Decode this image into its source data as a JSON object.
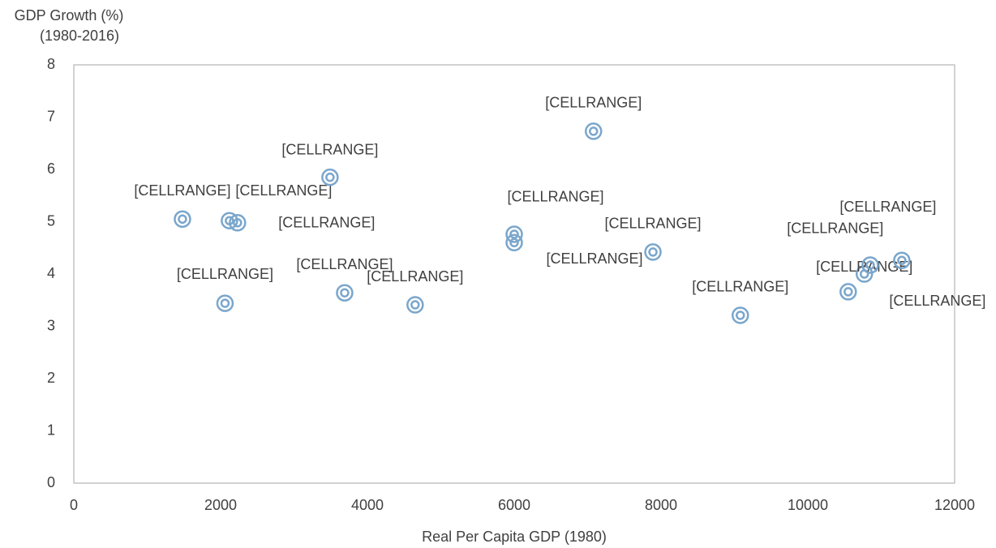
{
  "chart_data": {
    "type": "scatter",
    "y_label": [
      "GDP Growth (%)",
      "(1980-2016)"
    ],
    "x_label": "Real Per Capita GDP (1980)",
    "x": [
      1480,
      2120,
      2230,
      2060,
      3490,
      3690,
      4650,
      6000,
      6000,
      7080,
      7890,
      9080,
      10550,
      10770,
      10850,
      11280
    ],
    "values": [
      5.05,
      5.02,
      4.98,
      3.44,
      5.85,
      3.64,
      3.41,
      4.76,
      4.6,
      6.73,
      4.42,
      3.21,
      3.66,
      4.0,
      4.17,
      4.26
    ],
    "labels": [
      "[CELLRANGE]",
      "[CELLRANGE]",
      "[CELLRANGE]",
      "[CELLRANGE]",
      "[CELLRANGE]",
      "[CELLRANGE]",
      "[CELLRANGE]",
      "[CELLRANGE]",
      "[CELLRANGE]",
      "[CELLRANGE]",
      "[CELLRANGE]",
      "[CELLRANGE]",
      "[CELLRANGE]",
      "[CELLRANGE]",
      "[CELLRANGE]",
      "[CELLRANGE]"
    ],
    "color": "#7aa6cc",
    "xlim": [
      0,
      12000
    ],
    "xticks": [
      0,
      2000,
      4000,
      6000,
      8000,
      10000,
      12000
    ],
    "ylim": [
      0,
      8
    ],
    "yticks": [
      0,
      1,
      2,
      3,
      4,
      5,
      6,
      7,
      8
    ],
    "grid": false
  }
}
